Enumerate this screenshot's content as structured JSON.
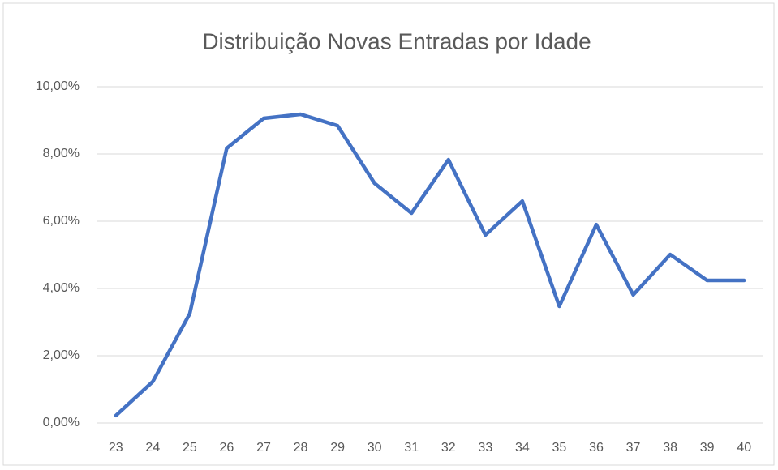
{
  "chart_data": {
    "type": "line",
    "title": "Distribuição Novas Entradas por Idade",
    "categories": [
      "23",
      "24",
      "25",
      "26",
      "27",
      "28",
      "29",
      "30",
      "31",
      "32",
      "33",
      "34",
      "35",
      "36",
      "37",
      "38",
      "39",
      "40"
    ],
    "series": [
      {
        "name": "Novas Entradas",
        "color": "#4472c4",
        "values": [
          0.22,
          1.23,
          3.25,
          8.17,
          9.06,
          9.18,
          8.84,
          7.13,
          6.24,
          7.83,
          5.59,
          6.6,
          3.47,
          5.9,
          3.81,
          5.01,
          4.24,
          4.24
        ]
      }
    ],
    "ylim": [
      0,
      10
    ],
    "yticks": [
      {
        "value": 0,
        "label": "0,00%"
      },
      {
        "value": 2,
        "label": "2,00%"
      },
      {
        "value": 4,
        "label": "4,00%"
      },
      {
        "value": 6,
        "label": "6,00%"
      },
      {
        "value": 8,
        "label": "8,00%"
      },
      {
        "value": 10,
        "label": "10,00%"
      }
    ],
    "grid": true
  }
}
